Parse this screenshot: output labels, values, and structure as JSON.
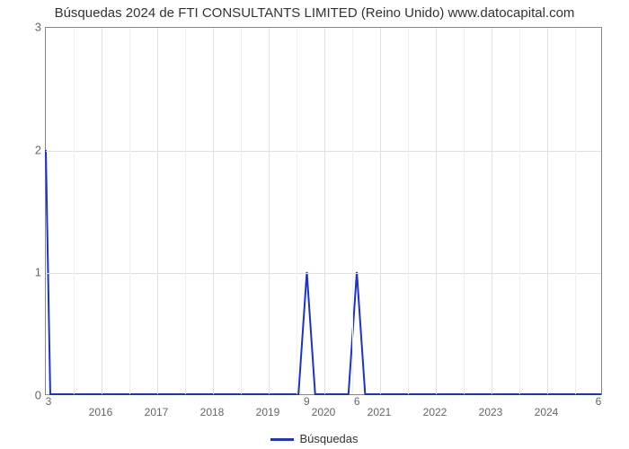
{
  "chart": {
    "type": "line",
    "title": "Búsquedas 2024 de FTI CONSULTANTS LIMITED (Reino Unido) www.datocapital.com",
    "title_fontsize": 15,
    "title_color": "#333333",
    "background_color": "#ffffff",
    "plot_border_color": "#888888",
    "grid_color": "#e0e0e0",
    "line_color": "#1a33cc",
    "line_width": 2,
    "xlim": [
      2015,
      2025
    ],
    "ylim": [
      0,
      3
    ],
    "x_ticks": [
      2016,
      2017,
      2018,
      2019,
      2020,
      2021,
      2022,
      2023,
      2024
    ],
    "y_ticks": [
      0,
      1,
      2,
      3
    ],
    "y_label_fontsize": 13,
    "x_label_fontsize": 12,
    "data_points": [
      {
        "x": 2015.0,
        "y": 2.0
      },
      {
        "x": 2015.08,
        "y": 0.0
      },
      {
        "x": 2019.55,
        "y": 0.0
      },
      {
        "x": 2019.7,
        "y": 1.0
      },
      {
        "x": 2019.85,
        "y": 0.0
      },
      {
        "x": 2020.45,
        "y": 0.0
      },
      {
        "x": 2020.6,
        "y": 1.0
      },
      {
        "x": 2020.75,
        "y": 0.0
      },
      {
        "x": 2025.0,
        "y": 0.0
      }
    ],
    "start_value_label": "3",
    "spike_labels": [
      {
        "x": 2019.7,
        "text": "9"
      },
      {
        "x": 2020.6,
        "text": "6"
      }
    ],
    "end_value_label": "6",
    "legend_label": "Búsquedas",
    "legend_color": "#1a33cc"
  }
}
